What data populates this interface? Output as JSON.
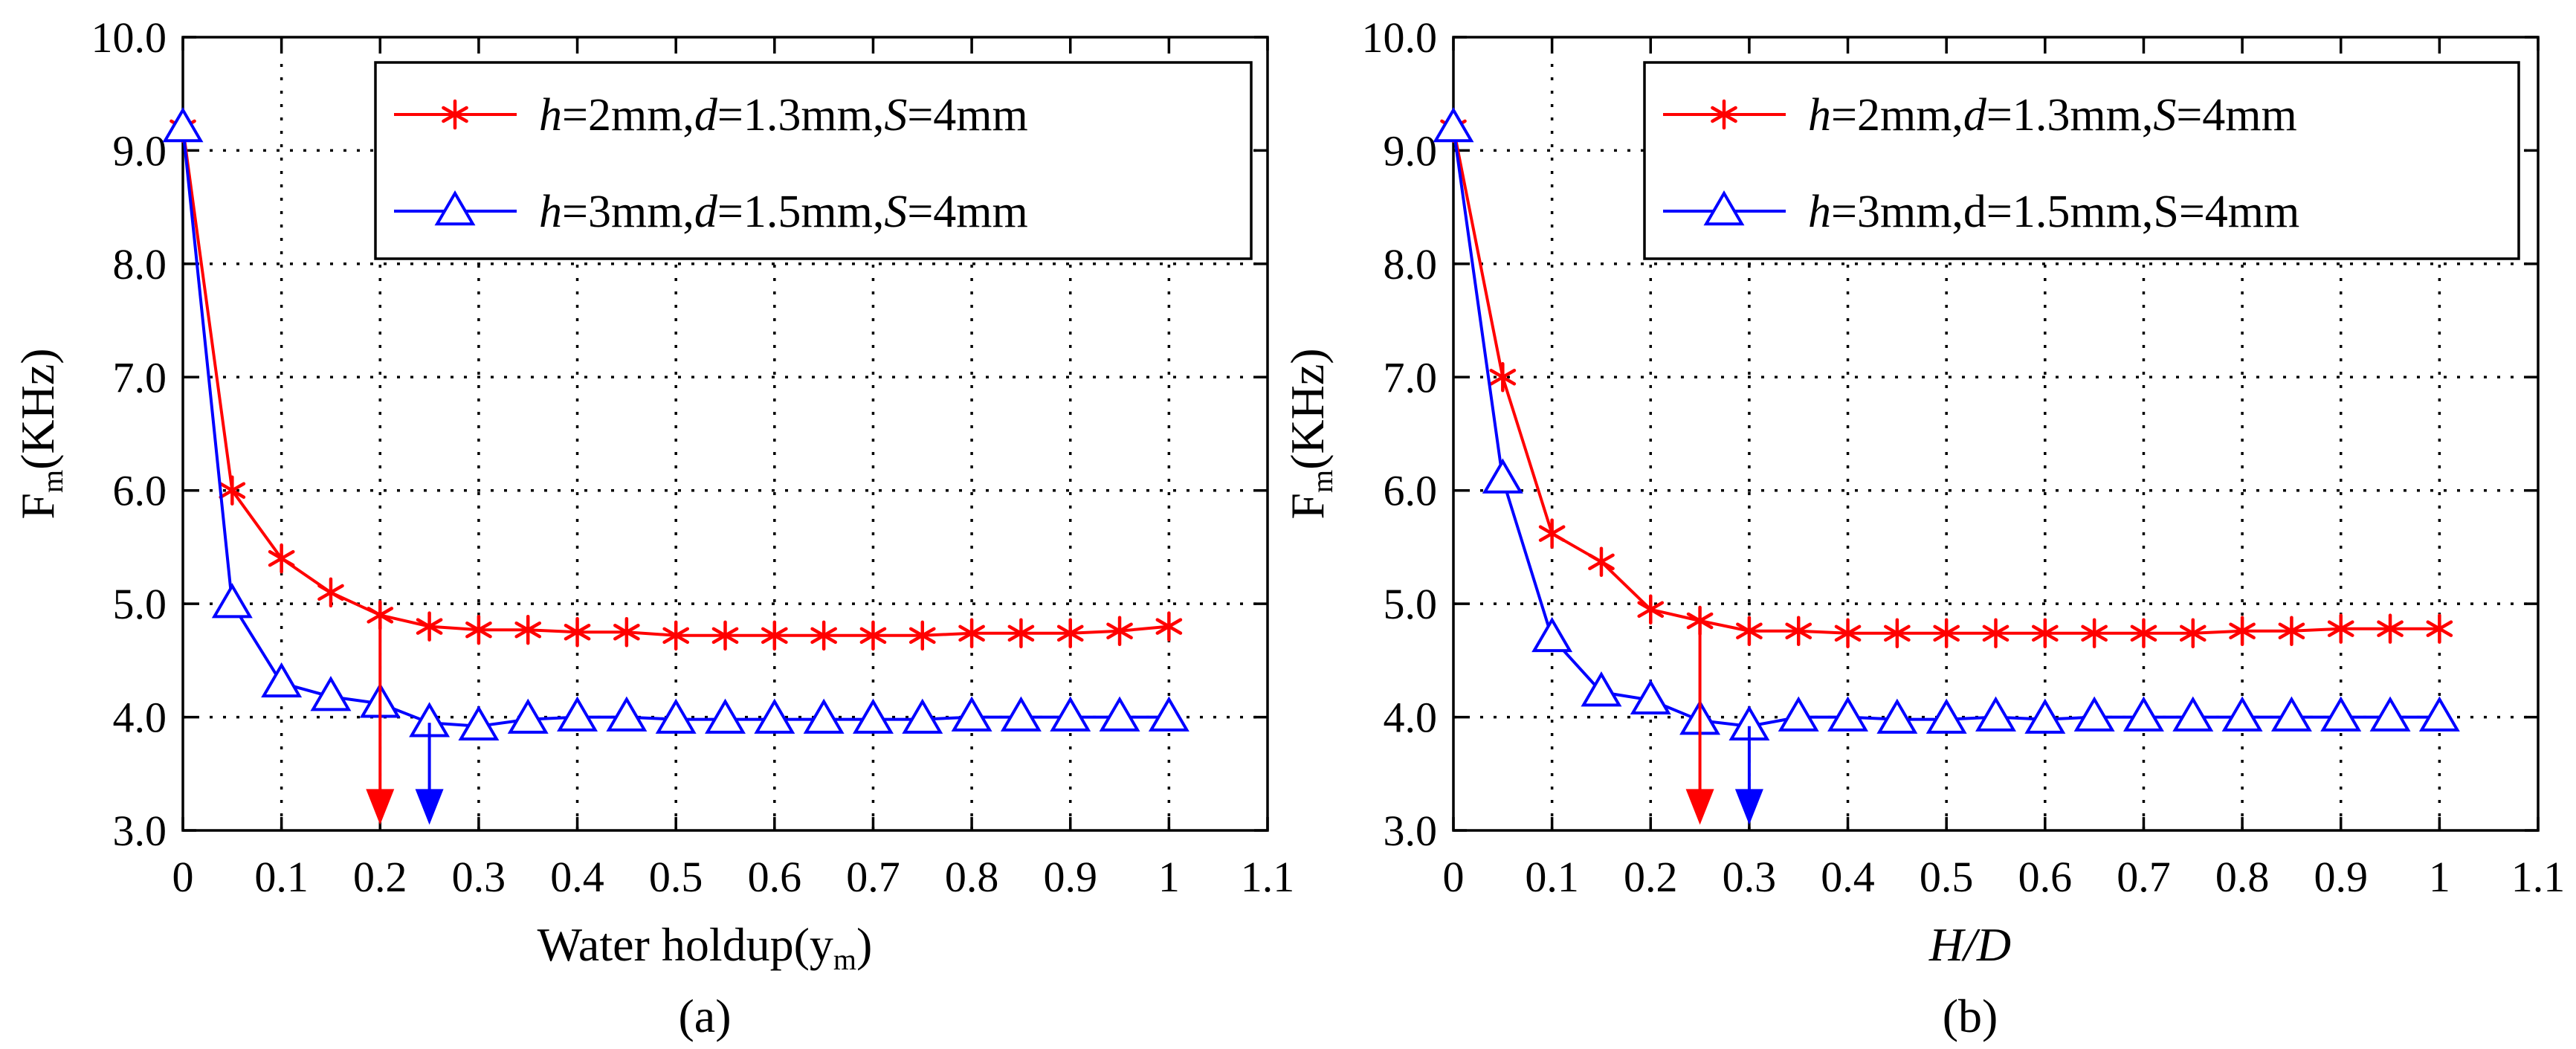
{
  "chart_data": [
    {
      "type": "line",
      "subcaption": "(a)",
      "xlabel": "Water holdup(y",
      "xlabel_sub": "m",
      "xlabel_end": ")",
      "ylabel": "F",
      "ylabel_sub": "m",
      "ylabel_end": "(KHz)",
      "xlim": [
        0,
        1.1
      ],
      "ylim": [
        3.0,
        10.0
      ],
      "xticks": [
        0,
        0.1,
        0.2,
        0.3,
        0.4,
        0.5,
        0.6,
        0.7,
        0.8,
        0.9,
        1,
        1.1
      ],
      "xtick_labels": [
        "0",
        "0.1",
        "0.2",
        "0.3",
        "0.4",
        "0.5",
        "0.6",
        "0.7",
        "0.8",
        "0.9",
        "1",
        "1.1"
      ],
      "yticks": [
        3,
        4,
        5,
        6,
        7,
        8,
        9,
        10
      ],
      "ytick_labels": [
        "3.0",
        "4.0",
        "5.0",
        "6.0",
        "7.0",
        "8.0",
        "9.0",
        "10.0"
      ],
      "grid": true,
      "legend_position": "top-right",
      "x": [
        0,
        0.05,
        0.1,
        0.15,
        0.2,
        0.25,
        0.3,
        0.35,
        0.4,
        0.45,
        0.5,
        0.55,
        0.6,
        0.65,
        0.7,
        0.75,
        0.8,
        0.85,
        0.9,
        0.95,
        1.0
      ],
      "series": [
        {
          "name": "h=2mm,d=1.3mm,S=4mm",
          "legend": [
            [
              "h",
              true
            ],
            [
              "=2mm,",
              false
            ],
            [
              "d",
              true
            ],
            [
              "=1.3mm,",
              false
            ],
            [
              "S",
              true
            ],
            [
              "=4mm",
              false
            ]
          ],
          "color": "#ff0000",
          "marker": "asterisk",
          "values": [
            9.2,
            6.0,
            5.4,
            5.1,
            4.9,
            4.8,
            4.77,
            4.77,
            4.75,
            4.75,
            4.72,
            4.72,
            4.72,
            4.72,
            4.72,
            4.72,
            4.74,
            4.74,
            4.74,
            4.76,
            4.8
          ]
        },
        {
          "name": "h=3mm,d=1.5mm,S=4mm",
          "legend": [
            [
              "h",
              true
            ],
            [
              "=3mm,",
              false
            ],
            [
              "d",
              true
            ],
            [
              "=1.5mm,",
              false
            ],
            [
              "S",
              true
            ],
            [
              "=4mm",
              false
            ]
          ],
          "color": "#0000ff",
          "marker": "triangle",
          "values": [
            9.2,
            5.0,
            4.3,
            4.18,
            4.12,
            3.95,
            3.92,
            3.98,
            4.0,
            4.0,
            3.98,
            3.98,
            3.98,
            3.98,
            3.98,
            3.98,
            4.0,
            4.0,
            4.0,
            4.0,
            4.0
          ]
        }
      ],
      "annotations": [
        {
          "type": "arrow",
          "x": 0.2,
          "from_y": 4.9,
          "to_y": 3.05,
          "color": "#ff0000"
        },
        {
          "type": "arrow",
          "x": 0.25,
          "from_y": 3.95,
          "to_y": 3.05,
          "color": "#0000ff"
        }
      ]
    },
    {
      "type": "line",
      "subcaption": "(b)",
      "xlabel": "H/D",
      "xlabel_italic": true,
      "ylabel": "F",
      "ylabel_sub": "m",
      "ylabel_end": "(KHz)",
      "xlim": [
        0,
        1.1
      ],
      "ylim": [
        3.0,
        10.0
      ],
      "xticks": [
        0,
        0.1,
        0.2,
        0.3,
        0.4,
        0.5,
        0.6,
        0.7,
        0.8,
        0.9,
        1,
        1.1
      ],
      "xtick_labels": [
        "0",
        "0.1",
        "0.2",
        "0.3",
        "0.4",
        "0.5",
        "0.6",
        "0.7",
        "0.8",
        "0.9",
        "1",
        "1.1"
      ],
      "yticks": [
        3,
        4,
        5,
        6,
        7,
        8,
        9,
        10
      ],
      "ytick_labels": [
        "3.0",
        "4.0",
        "5.0",
        "6.0",
        "7.0",
        "8.0",
        "9.0",
        "10.0"
      ],
      "grid": true,
      "legend_position": "top-right",
      "x": [
        0,
        0.05,
        0.1,
        0.15,
        0.2,
        0.25,
        0.3,
        0.35,
        0.4,
        0.45,
        0.5,
        0.55,
        0.6,
        0.65,
        0.7,
        0.75,
        0.8,
        0.85,
        0.9,
        0.95,
        1.0
      ],
      "series": [
        {
          "name": "h=2mm,d=1.3mm,S=4mm",
          "legend": [
            [
              "h",
              true
            ],
            [
              "=2mm,",
              false
            ],
            [
              "d",
              true
            ],
            [
              "=1.3mm,",
              false
            ],
            [
              "S",
              true
            ],
            [
              "=4mm",
              false
            ]
          ],
          "color": "#ff0000",
          "marker": "asterisk",
          "values": [
            9.2,
            7.0,
            5.62,
            5.37,
            4.95,
            4.85,
            4.76,
            4.76,
            4.74,
            4.74,
            4.74,
            4.74,
            4.74,
            4.74,
            4.74,
            4.74,
            4.76,
            4.76,
            4.78,
            4.78,
            4.78
          ]
        },
        {
          "name": "h=3mm,d=1.5mm,S=4mm",
          "legend": [
            [
              "h",
              true
            ],
            [
              "=3mm,d=1.5mm,S=4mm",
              false
            ]
          ],
          "color": "#0000ff",
          "marker": "triangle",
          "values": [
            9.2,
            6.1,
            4.7,
            4.22,
            4.15,
            3.97,
            3.92,
            4.0,
            4.0,
            3.98,
            3.98,
            4.0,
            3.98,
            4.0,
            4.0,
            4.0,
            4.0,
            4.0,
            4.0,
            4.0,
            4.0
          ]
        }
      ],
      "annotations": [
        {
          "type": "arrow",
          "x": 0.25,
          "from_y": 4.85,
          "to_y": 3.05,
          "color": "#ff0000"
        },
        {
          "type": "arrow",
          "x": 0.3,
          "from_y": 3.92,
          "to_y": 3.05,
          "color": "#0000ff"
        }
      ]
    }
  ]
}
